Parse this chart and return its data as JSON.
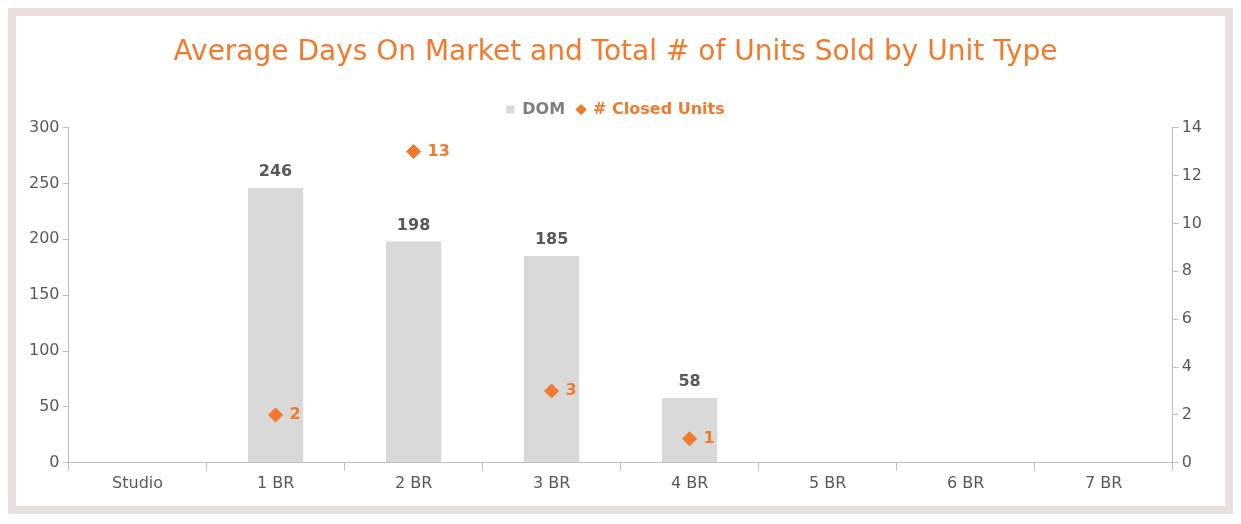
{
  "chart_data": {
    "type": "bar",
    "title": "Average Days On Market and Total # of Units Sold by Unit Type",
    "categories": [
      "Studio",
      "1 BR",
      "2 BR",
      "3 BR",
      "4 BR",
      "5 BR",
      "6 BR",
      "7 BR"
    ],
    "series": [
      {
        "name": "DOM",
        "color": "#d9d9d9",
        "values": [
          null,
          246,
          198,
          185,
          58,
          null,
          null,
          null
        ]
      },
      {
        "name": "# Closed Units",
        "type": "scatter",
        "axis": "y2",
        "color": "#f07a2e",
        "values": [
          null,
          2,
          13,
          3,
          1,
          null,
          null,
          null
        ]
      }
    ],
    "ylim": [
      0,
      300
    ],
    "yticks": [
      0,
      50,
      100,
      150,
      200,
      250,
      300
    ],
    "y2lim": [
      0,
      14
    ],
    "y2ticks": [
      0,
      2,
      4,
      6,
      8,
      10,
      12,
      14
    ],
    "data_labels": true,
    "legend": "top",
    "grid": false,
    "marker": "diamond"
  }
}
